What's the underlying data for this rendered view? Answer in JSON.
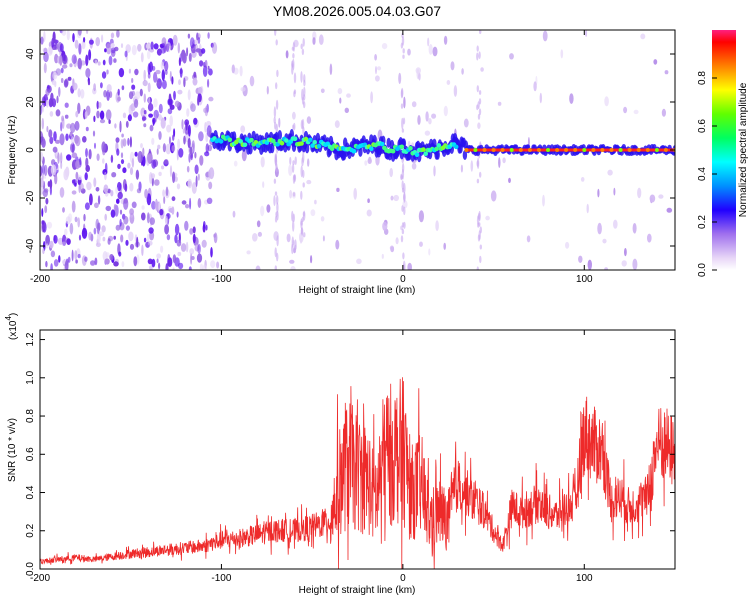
{
  "title": "YM08.2026.005.04.03.G07",
  "chart_data": [
    {
      "type": "heatmap",
      "xlabel": "Height of straight line (km)",
      "ylabel": "Frequency (Hz)",
      "xlim": [
        -200,
        150
      ],
      "ylim": [
        -50,
        50
      ],
      "xticks": [
        -200,
        -100,
        0,
        100
      ],
      "yticks": [
        -40,
        -20,
        0,
        20,
        40
      ],
      "colorbar": {
        "label": "Normalized spectral amplitude",
        "range": [
          0,
          1
        ],
        "ticks": [
          "0.0",
          "0.2",
          "0.4",
          "0.6",
          "0.8"
        ]
      },
      "ridge": {
        "description_points_x": [
          -105,
          -90,
          -75,
          -60,
          -45,
          -35,
          -25,
          -15,
          -5,
          0,
          10,
          20,
          28,
          35,
          50,
          100,
          150
        ],
        "frequency_hz": [
          5,
          3,
          3,
          4,
          2,
          0,
          1,
          2,
          0,
          1,
          -1,
          1,
          3,
          0,
          0,
          0,
          0
        ]
      }
    },
    {
      "type": "line",
      "xlabel": "Height of straight line (km)",
      "ylabel": "SNR (10 * v/v)",
      "yscale_label": "(x10",
      "yscale_exp": "4",
      "xlim": [
        -200,
        150
      ],
      "ylim": [
        0,
        1.25
      ],
      "xticks": [
        -200,
        -100,
        0,
        100
      ],
      "yticks": [
        "0.0",
        "0.2",
        "0.4",
        "0.6",
        "0.8",
        "1.0",
        "1.2"
      ],
      "series": [
        {
          "color": "#ee2a2a",
          "x": [
            -200,
            -180,
            -170,
            -150,
            -130,
            -110,
            -100,
            -90,
            -80,
            -70,
            -60,
            -50,
            -40,
            -35,
            -30,
            -25,
            -20,
            -15,
            -10,
            -5,
            0,
            5,
            10,
            15,
            20,
            25,
            30,
            35,
            40,
            45,
            50,
            55,
            60,
            65,
            70,
            75,
            80,
            85,
            90,
            95,
            100,
            105,
            110,
            115,
            120,
            125,
            130,
            135,
            140,
            145,
            150
          ],
          "y": [
            0.04,
            0.06,
            0.05,
            0.08,
            0.1,
            0.12,
            0.15,
            0.16,
            0.18,
            0.2,
            0.2,
            0.22,
            0.25,
            0.45,
            0.55,
            0.5,
            0.48,
            0.35,
            0.6,
            0.6,
            0.62,
            0.4,
            0.45,
            0.25,
            0.3,
            0.25,
            0.45,
            0.4,
            0.35,
            0.3,
            0.2,
            0.12,
            0.32,
            0.3,
            0.32,
            0.35,
            0.3,
            0.28,
            0.32,
            0.35,
            0.72,
            0.65,
            0.62,
            0.35,
            0.38,
            0.32,
            0.35,
            0.38,
            0.65,
            0.65,
            0.6
          ]
        }
      ]
    }
  ]
}
